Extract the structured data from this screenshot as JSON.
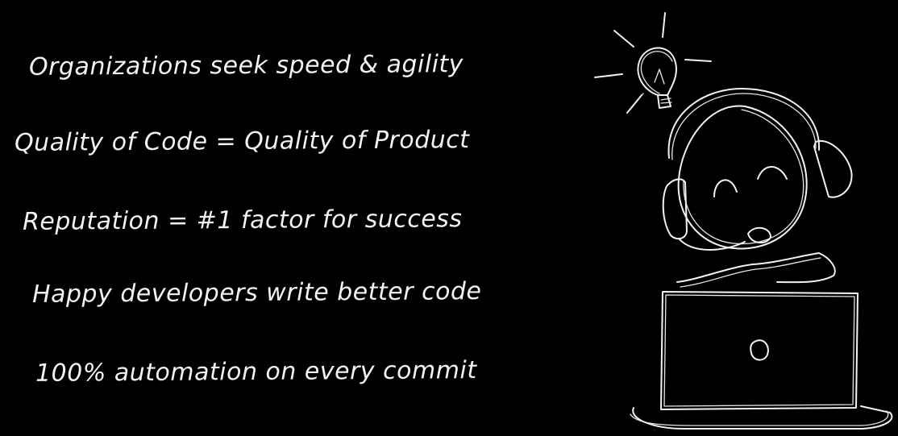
{
  "slide": {
    "background": "#000000",
    "text_color": "#f2f2f2",
    "bullets": [
      "Organizations seek speed & agility",
      "Quality of Code = Quality of Product",
      "Reputation = #1 factor for success",
      "Happy developers write better code",
      "100% automation on every commit"
    ],
    "illustration": {
      "icons": [
        "lightbulb-icon",
        "person-with-headset-icon",
        "laptop-icon"
      ]
    }
  }
}
